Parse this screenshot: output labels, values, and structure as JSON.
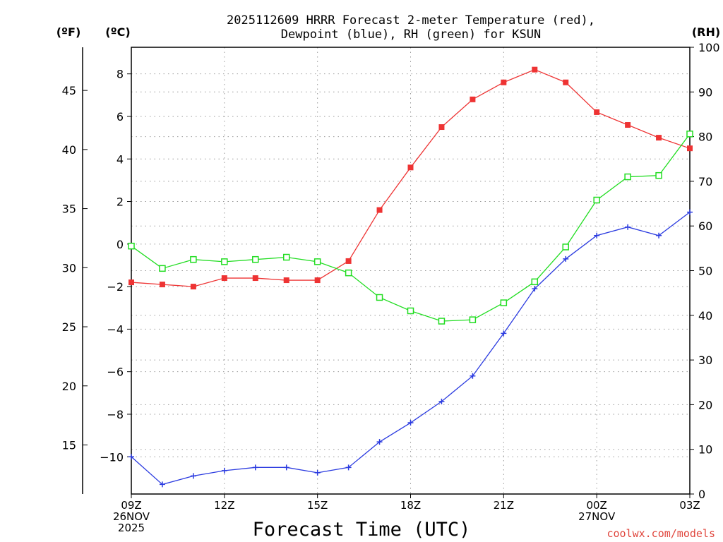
{
  "chart_data": {
    "type": "line",
    "title": [
      "2025112609 HRRR Forecast 2-meter Temperature (red),",
      "Dewpoint (blue), RH (green) for KSUN"
    ],
    "xlabel": "Forecast Time (UTC)",
    "units": {
      "fahrenheit": "(ºF)",
      "celsius": "(ºC)",
      "rh": "(RH)"
    },
    "x_hours": [
      0,
      1,
      2,
      3,
      4,
      5,
      6,
      7,
      8,
      9,
      10,
      11,
      12,
      13,
      14,
      15,
      16,
      17,
      18
    ],
    "x_ticks": [
      {
        "hour": 0,
        "lines": [
          "09Z",
          "26NOV",
          "2025"
        ]
      },
      {
        "hour": 3,
        "lines": [
          "12Z"
        ]
      },
      {
        "hour": 6,
        "lines": [
          "15Z"
        ]
      },
      {
        "hour": 9,
        "lines": [
          "18Z"
        ]
      },
      {
        "hour": 12,
        "lines": [
          "21Z"
        ]
      },
      {
        "hour": 15,
        "lines": [
          "00Z",
          "27NOV"
        ]
      },
      {
        "hour": 18,
        "lines": [
          "03Z"
        ]
      }
    ],
    "celsius_axis": {
      "range": [
        -11.75,
        9.25
      ],
      "ticks": [
        -10,
        -8,
        -6,
        -4,
        -2,
        0,
        2,
        4,
        6,
        8
      ],
      "labels": [
        "−10",
        "−8",
        "−6",
        "−4",
        "−2",
        "0",
        "2",
        "4",
        "6",
        "8"
      ]
    },
    "fahrenheit_axis": {
      "ticks": [
        15,
        20,
        25,
        30,
        35,
        40,
        45
      ],
      "labels": [
        "15",
        "20",
        "25",
        "30",
        "35",
        "40",
        "45"
      ]
    },
    "rh_axis": {
      "range": [
        0,
        100
      ],
      "ticks": [
        0,
        10,
        20,
        30,
        40,
        50,
        60,
        70,
        80,
        90,
        100
      ],
      "labels": [
        "0",
        "10",
        "20",
        "30",
        "40",
        "50",
        "60",
        "70",
        "80",
        "90",
        "100"
      ]
    },
    "series": [
      {
        "name": "Temperature",
        "axis": "celsius",
        "color": "#ee3333",
        "marker": "filled-square",
        "values": [
          -1.8,
          -1.9,
          -2.0,
          -1.6,
          -1.6,
          -1.7,
          -1.7,
          -0.8,
          1.6,
          3.6,
          5.5,
          6.8,
          7.6,
          8.2,
          7.6,
          6.2,
          5.6,
          5.0,
          4.5
        ]
      },
      {
        "name": "Dewpoint",
        "axis": "celsius",
        "color": "#2b3be0",
        "marker": "plus",
        "values": [
          -10.0,
          -11.3,
          -10.9,
          -10.65,
          -10.5,
          -10.5,
          -10.75,
          -10.5,
          -9.3,
          -8.4,
          -7.4,
          -6.2,
          -4.2,
          -2.1,
          -0.7,
          0.4,
          0.8,
          0.4,
          1.5
        ]
      },
      {
        "name": "RH",
        "axis": "rh",
        "color": "#22dd22",
        "marker": "open-square",
        "values": [
          55.5,
          50.5,
          52.5,
          52.0,
          52.5,
          53.0,
          52.0,
          49.5,
          44.0,
          41.0,
          38.7,
          39.0,
          42.8,
          47.5,
          55.3,
          65.8,
          71.0,
          71.3,
          80.6
        ]
      }
    ],
    "credit": "coolwx.com/models",
    "grid": true
  }
}
